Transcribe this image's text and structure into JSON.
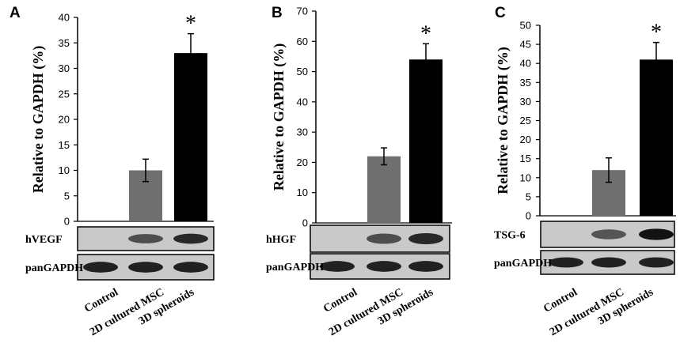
{
  "chart_data": [
    {
      "type": "bar",
      "panel": "A",
      "ylabel": "Relative to GAPDH (%)",
      "ylim": [
        0,
        40
      ],
      "yticks": [
        0,
        5,
        10,
        15,
        20,
        25,
        30,
        35,
        40
      ],
      "categories": [
        "Control",
        "2D cultured MSC",
        "3D spheroids"
      ],
      "values": [
        0,
        10,
        33
      ],
      "errors": [
        0,
        2.2,
        3.8
      ],
      "bar_colors": [
        "#6f6f6f",
        "#6f6f6f",
        "#000000"
      ],
      "significance": [
        "",
        "",
        "*"
      ],
      "blots": [
        {
          "label": "hVEGF",
          "intensity": [
            0,
            0.55,
            0.8
          ]
        },
        {
          "label": "panGAPDH",
          "intensity": [
            0.85,
            0.85,
            0.85
          ]
        }
      ]
    },
    {
      "type": "bar",
      "panel": "B",
      "ylabel": "Relative to GAPDH (%)",
      "ylim": [
        0,
        70
      ],
      "yticks": [
        0,
        10,
        20,
        30,
        40,
        50,
        60,
        70
      ],
      "categories": [
        "Control",
        "2D cultured MSC",
        "3D spheroids"
      ],
      "values": [
        0,
        22,
        54
      ],
      "errors": [
        0,
        2.8,
        5.2
      ],
      "bar_colors": [
        "#6f6f6f",
        "#6f6f6f",
        "#000000"
      ],
      "significance": [
        "",
        "",
        "*"
      ],
      "blots": [
        {
          "label": "hHGF",
          "intensity": [
            0,
            0.55,
            0.8
          ]
        },
        {
          "label": "panGAPDH",
          "intensity": [
            0.85,
            0.85,
            0.85
          ]
        }
      ]
    },
    {
      "type": "bar",
      "panel": "C",
      "ylabel": "Relative to GAPDH (%)",
      "ylim": [
        0,
        50
      ],
      "yticks": [
        0,
        5,
        10,
        15,
        20,
        25,
        30,
        35,
        40,
        45,
        50
      ],
      "categories": [
        "Control",
        "2D cultured MSC",
        "3D spheroids"
      ],
      "values": [
        0,
        12,
        41
      ],
      "errors": [
        0,
        3.2,
        4.5
      ],
      "bar_colors": [
        "#6f6f6f",
        "#6f6f6f",
        "#000000"
      ],
      "significance": [
        "",
        "",
        "*"
      ],
      "blots": [
        {
          "label": "TSG-6",
          "intensity": [
            0,
            0.5,
            0.95
          ]
        },
        {
          "label": "panGAPDH",
          "intensity": [
            0.85,
            0.85,
            0.85
          ]
        }
      ]
    }
  ]
}
